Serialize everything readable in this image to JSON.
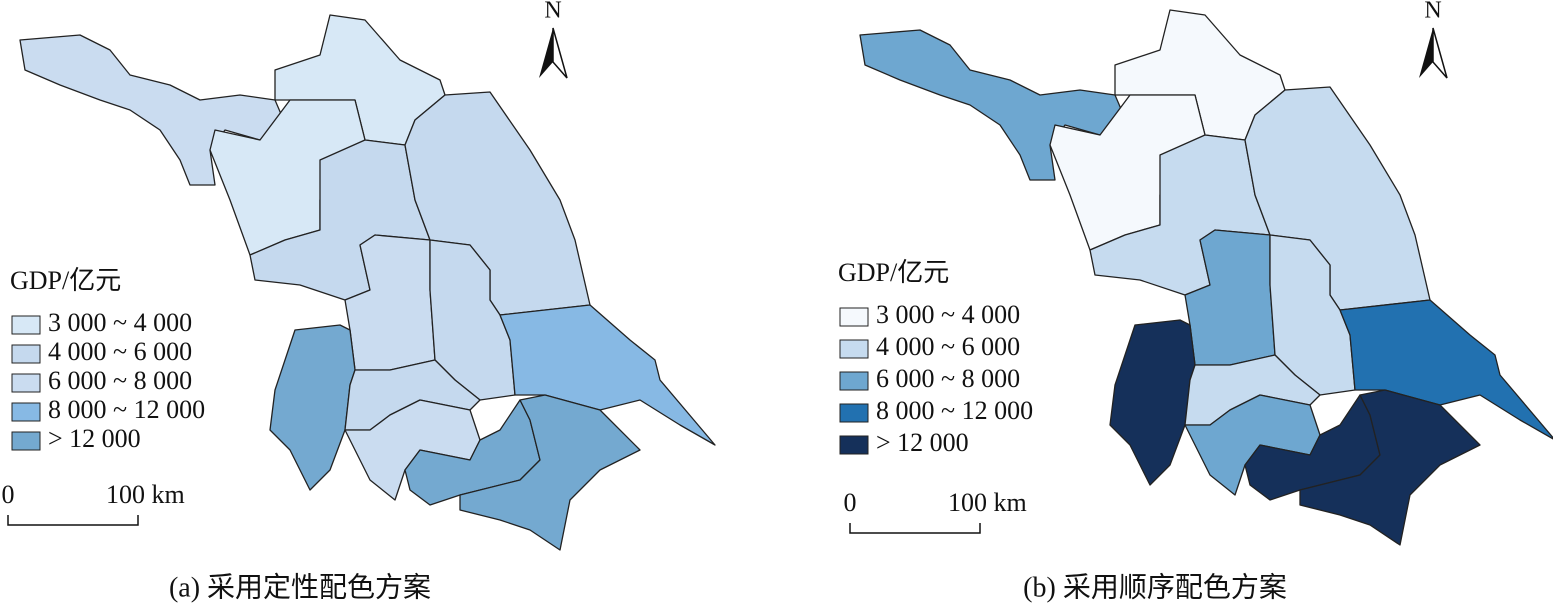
{
  "panels": [
    {
      "north": "N",
      "legend": {
        "title": "GDP/亿元",
        "items": [
          {
            "label": "3 000 ~ 4 000",
            "color": "#d7e8f6"
          },
          {
            "label": "4 000 ~ 6 000",
            "color": "#c5d9ee"
          },
          {
            "label": "6 000 ~ 8 000",
            "color": "#cadcf0"
          },
          {
            "label": "8 000 ~ 12 000",
            "color": "#87b9e4"
          },
          {
            "label": "> 12 000",
            "color": "#74a9d0"
          }
        ]
      },
      "scale": {
        "labels": [
          "0",
          "100 km"
        ]
      },
      "caption": "(a) 采用定性配色方案"
    },
    {
      "north": "N",
      "legend": {
        "title": "GDP/亿元",
        "items": [
          {
            "label": "3 000 ~ 4 000",
            "color": "#f5f9fd"
          },
          {
            "label": "4 000 ~ 6 000",
            "color": "#c6dbef"
          },
          {
            "label": "6 000 ~ 8 000",
            "color": "#6ea7d0"
          },
          {
            "label": "8 000 ~ 12 000",
            "color": "#2271b0"
          },
          {
            "label": "> 12 000",
            "color": "#15305a"
          }
        ]
      },
      "scale": {
        "labels": [
          "0",
          "100 km"
        ]
      },
      "caption": "(b) 采用顺序配色方案"
    }
  ]
}
